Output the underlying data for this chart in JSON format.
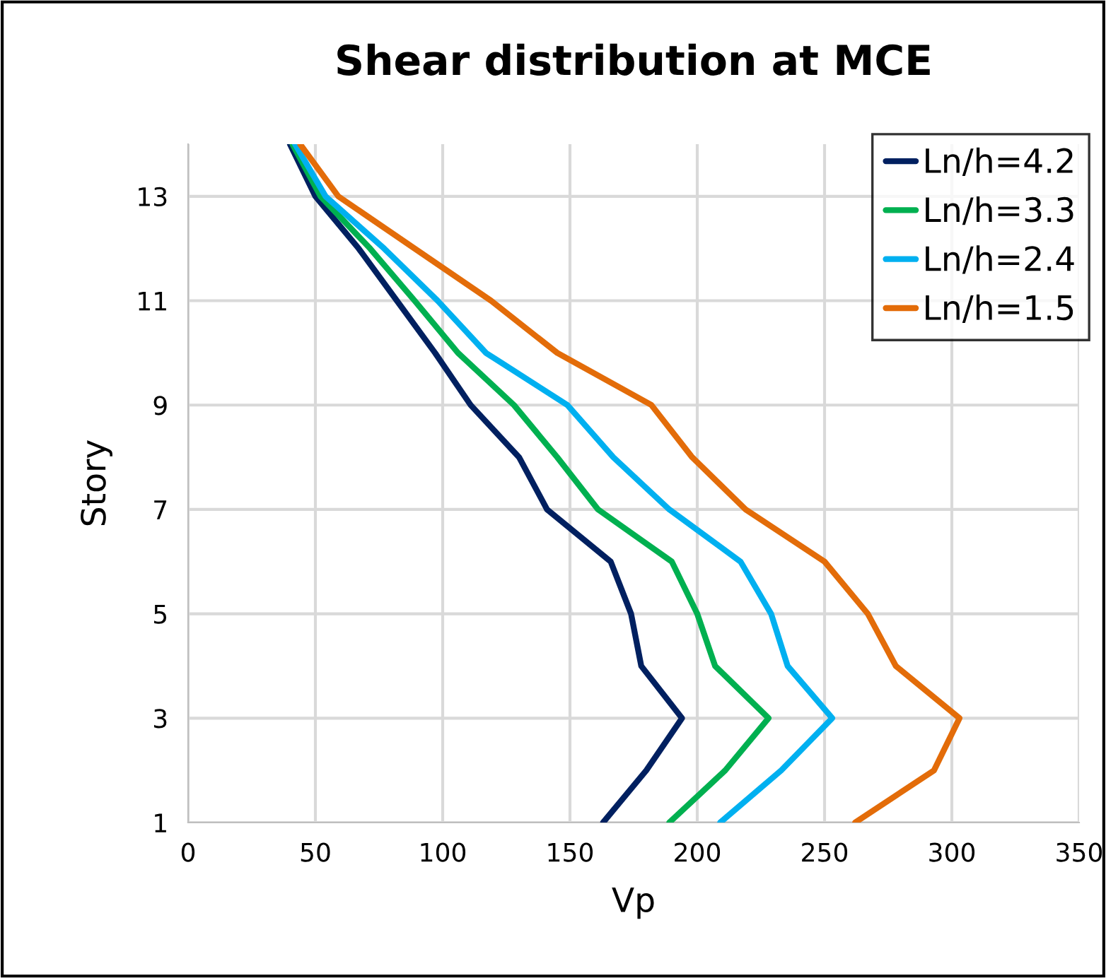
{
  "chart_data": {
    "type": "line",
    "title": "Shear distribution at MCE",
    "xlabel": "Vp",
    "ylabel": "Story",
    "xlim": [
      0,
      350
    ],
    "xticks": [
      0,
      50,
      100,
      150,
      200,
      250,
      300,
      350
    ],
    "ylim": [
      1,
      14
    ],
    "yticks": [
      1,
      3,
      5,
      7,
      9,
      11,
      13
    ],
    "grid": true,
    "legend": "top right",
    "marker": "none",
    "line_style": "solid",
    "series": [
      {
        "name": "Ln/h=4.2",
        "color": "#002060",
        "x": [
          163,
          180,
          194,
          178,
          174,
          166,
          141,
          130,
          111,
          97,
          82,
          67,
          50,
          40
        ],
        "values": [
          1,
          2,
          3,
          4,
          5,
          6,
          7,
          8,
          9,
          10,
          11,
          12,
          13,
          14
        ]
      },
      {
        "name": "Ln/h=3.3",
        "color": "#00b050",
        "x": [
          189,
          211,
          228,
          207,
          200,
          190,
          161,
          145,
          128,
          106,
          89,
          71.5,
          52,
          41
        ],
        "values": [
          1,
          2,
          3,
          4,
          5,
          6,
          7,
          8,
          9,
          10,
          11,
          12,
          13,
          14
        ]
      },
      {
        "name": "Ln/h=2.4",
        "color": "#00b0f0",
        "x": [
          209,
          233,
          253,
          235.5,
          229,
          217,
          189,
          167,
          149,
          117,
          98,
          77,
          54,
          42
        ],
        "values": [
          1,
          2,
          3,
          4,
          5,
          6,
          7,
          8,
          9,
          10,
          11,
          12,
          13,
          14
        ]
      },
      {
        "name": "Ln/h=1.5",
        "color": "#e36c09",
        "x": [
          262,
          293,
          303,
          278,
          267,
          250,
          219,
          198,
          182,
          145,
          119,
          89,
          59,
          44
        ],
        "values": [
          1,
          2,
          3,
          4,
          5,
          6,
          7,
          8,
          9,
          10,
          11,
          12,
          13,
          14
        ]
      }
    ]
  }
}
